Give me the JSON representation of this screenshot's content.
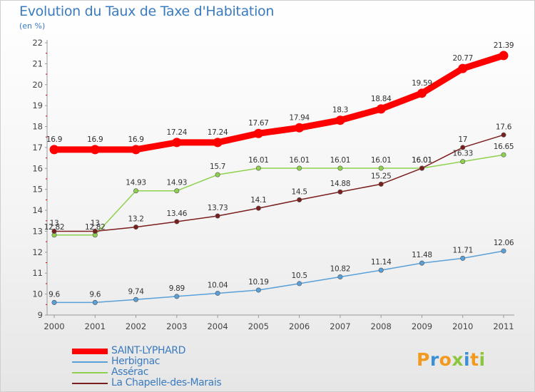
{
  "chart_data": {
    "type": "line",
    "title": "Evolution du Taux de Taxe d'Habitation",
    "subtitle": "(en %)",
    "categories": [
      "2000",
      "2001",
      "2002",
      "2003",
      "2004",
      "2005",
      "2006",
      "2007",
      "2008",
      "2009",
      "2010",
      "2011"
    ],
    "ylim": [
      9,
      22
    ],
    "yticks": [
      9,
      10,
      11,
      12,
      13,
      14,
      15,
      16,
      17,
      18,
      19,
      20,
      21,
      22
    ],
    "grid": false,
    "legend_position": "bottom-left",
    "series": [
      {
        "name": "SAINT-LYPHARD",
        "color": "#ff0000",
        "highlight": true,
        "values": [
          16.9,
          16.9,
          16.9,
          17.24,
          17.24,
          17.67,
          17.94,
          18.3,
          18.84,
          19.59,
          20.77,
          21.39
        ],
        "labels": [
          "16.9",
          "16.9",
          "16.9",
          "17.24",
          "17.24",
          "17.67",
          "17.94",
          "18.3",
          "18.84",
          "19.59",
          "20.77",
          "21.39"
        ]
      },
      {
        "name": "Herbignac",
        "color": "#5aa0d8",
        "highlight": false,
        "values": [
          9.6,
          9.6,
          9.74,
          9.89,
          10.04,
          10.19,
          10.5,
          10.82,
          11.14,
          11.48,
          11.71,
          12.06
        ],
        "labels": [
          "9.6",
          "9.6",
          "9.74",
          "9.89",
          "10.04",
          "10.19",
          "10.5",
          "10.82",
          "11.14",
          "11.48",
          "11.71",
          "12.06"
        ]
      },
      {
        "name": "Assérac",
        "color": "#8fd14f",
        "highlight": false,
        "values": [
          12.82,
          12.82,
          14.93,
          14.93,
          15.7,
          16.01,
          16.01,
          16.01,
          16.01,
          16.01,
          16.33,
          16.65
        ],
        "labels": [
          "12.82",
          "12.82",
          "14.93",
          "14.93",
          "15.7",
          "16.01",
          "16.01",
          "16.01",
          "16.01",
          "16.01",
          "16.33",
          "16.65"
        ]
      },
      {
        "name": "La Chapelle-des-Marais",
        "color": "#7a1e1e",
        "highlight": false,
        "values": [
          13,
          13,
          13.2,
          13.46,
          13.73,
          14.1,
          14.5,
          14.88,
          15.25,
          16.01,
          17,
          17.6
        ],
        "labels": [
          "13",
          "13",
          "13.2",
          "13.46",
          "13.73",
          "14.1",
          "14.5",
          "14.88",
          "15.25",
          "16.01",
          "17",
          "17.6"
        ]
      }
    ]
  },
  "logo": {
    "text": "Proxiti",
    "colors": [
      "#f29a1f",
      "#3a8fd6",
      "#f29a1f",
      "#8cc63f",
      "#3a8fd6",
      "#f29a1f",
      "#8cc63f"
    ]
  }
}
